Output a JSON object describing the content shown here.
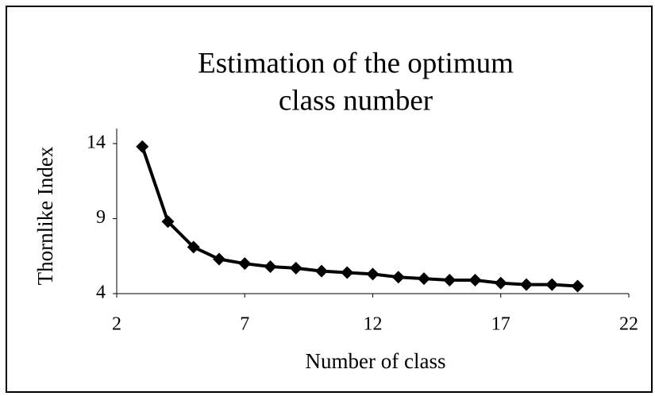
{
  "chart_data": {
    "type": "line",
    "title": [
      "Estimation of the optimum",
      "class number"
    ],
    "x_label": "Number of class",
    "y_label": "Thornlike Index",
    "x": [
      3,
      4,
      5,
      6,
      7,
      8,
      9,
      10,
      11,
      12,
      13,
      14,
      15,
      16,
      17,
      18,
      19,
      20
    ],
    "series": [
      {
        "color": "#000000",
        "values": [
          13.8,
          8.8,
          7.1,
          6.3,
          6.0,
          5.8,
          5.7,
          5.5,
          5.4,
          5.3,
          5.1,
          5.0,
          4.9,
          4.9,
          4.7,
          4.6,
          4.6,
          4.5
        ]
      }
    ],
    "xlim": [
      2,
      22
    ],
    "xticks": [
      2,
      7,
      12,
      17,
      22
    ],
    "ylim": [
      4,
      15
    ],
    "yticks": [
      4,
      9,
      14
    ]
  }
}
